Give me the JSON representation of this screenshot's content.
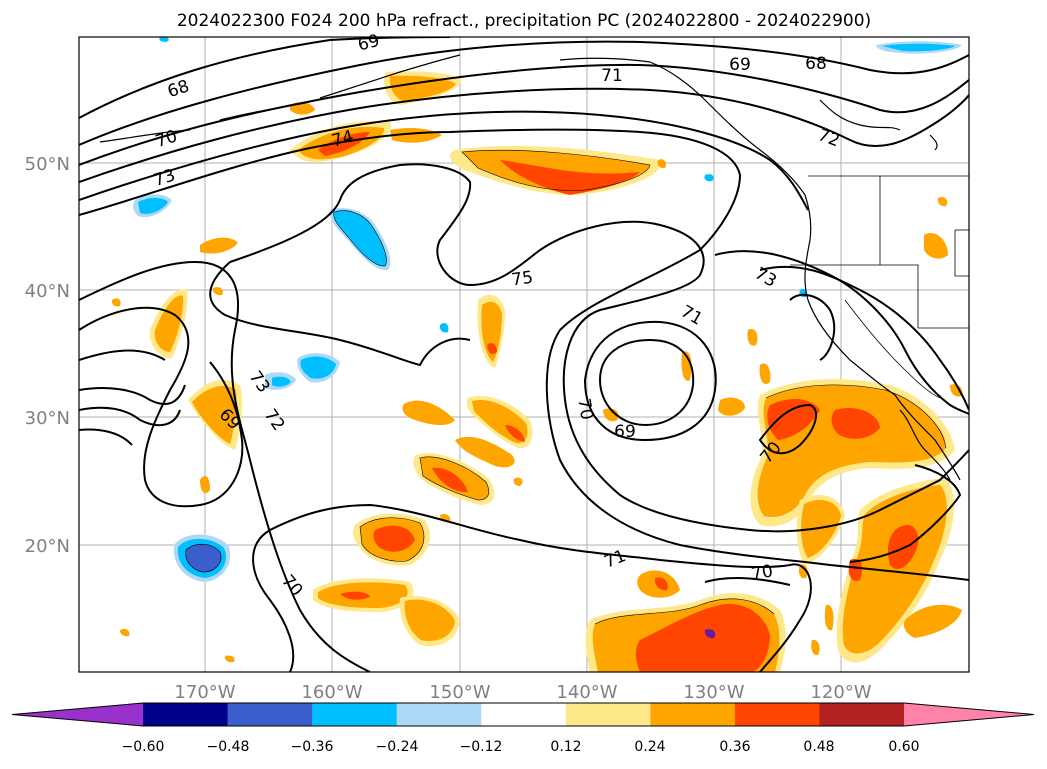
{
  "title": "2024022300 F024 200 hPa refract., precipitation PC (2024022800 - 2024022900)",
  "lat_labels": [
    "50°N",
    "40°N",
    "30°N",
    "20°N"
  ],
  "lon_labels": [
    "170°W",
    "160°W",
    "150°W",
    "140°W",
    "130°W",
    "120°W"
  ],
  "contour_labels": [
    "68",
    "69",
    "70",
    "73",
    "74",
    "75",
    "71",
    "69",
    "70",
    "71",
    "73",
    "73",
    "72",
    "69",
    "70",
    "71",
    "70",
    "68",
    "69",
    "72",
    "70"
  ],
  "colorbar": {
    "ticks": [
      "−0.60",
      "−0.48",
      "−0.36",
      "−0.24",
      "−0.12",
      "0.12",
      "0.24",
      "0.36",
      "0.48",
      "0.60"
    ],
    "colors": [
      "#9932cc",
      "#00008b",
      "#3a5fcd",
      "#00bfff",
      "#add8f6",
      "#ffffff",
      "#ffe88a",
      "#ffa500",
      "#ff4500",
      "#b22222",
      "#ff83a8"
    ]
  },
  "palette": {
    "orange_light": "#ffe88a",
    "orange": "#ffa500",
    "red_orange": "#ff4500",
    "light_blue": "#add8f6",
    "blue": "#00bfff",
    "mid_blue": "#3a5fcd",
    "dark_blue": "#00008b"
  }
}
